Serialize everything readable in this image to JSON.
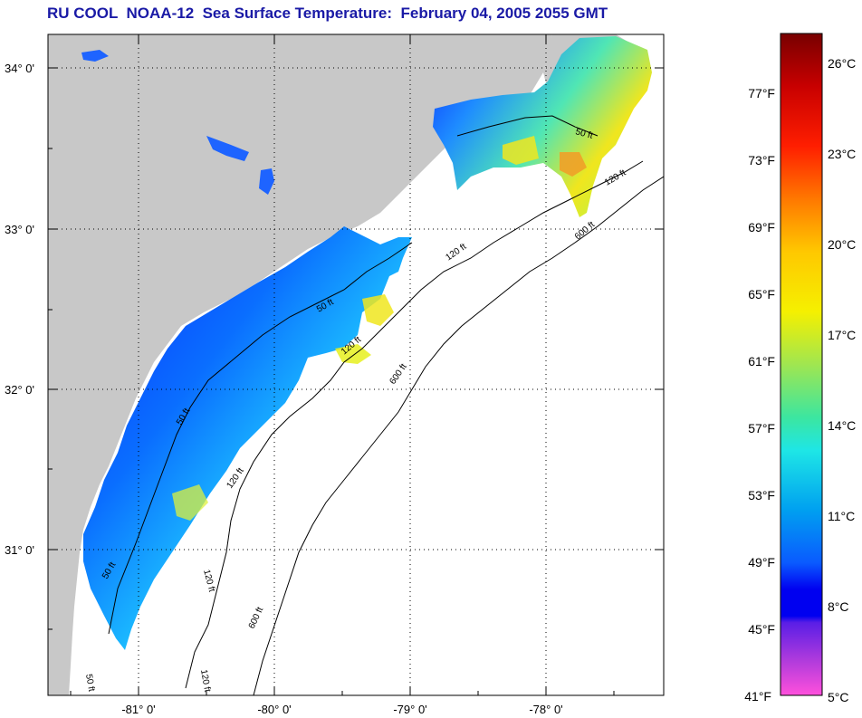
{
  "title": "RU COOL  NOAA-12  Sea Surface Temperature:  February 04, 2005 2055 GMT",
  "map": {
    "lon_ticks": [
      "-81° 0'",
      "-80° 0'",
      "-79° 0'",
      "-78° 0'"
    ],
    "lat_ticks": [
      "34° 0'",
      "33° 0'",
      "32° 0'",
      "31° 0'"
    ],
    "contour_labels": [
      "50 ft",
      "50 ft",
      "50 ft",
      "50 ft",
      "50 ft",
      "120 ft",
      "120 ft",
      "120 ft",
      "120 ft",
      "120 ft",
      "120 ft",
      "600 ft",
      "600 ft",
      "600 ft"
    ],
    "colors": {
      "land": "#c8c8c8",
      "ocean": "#ffffff",
      "grid": "#000000"
    }
  },
  "colorbar": {
    "fahrenheit_labels": [
      "77°F",
      "73°F",
      "69°F",
      "65°F",
      "61°F",
      "57°F",
      "53°F",
      "49°F",
      "45°F",
      "41°F"
    ],
    "celsius_labels": [
      "26°C",
      "23°C",
      "20°C",
      "17°C",
      "14°C",
      "11°C",
      "8°C",
      "5°C"
    ],
    "colors": [
      "#7a0000",
      "#cc0000",
      "#ff2a00",
      "#ff7a00",
      "#ffb400",
      "#ffee00",
      "#c8f03c",
      "#5ae696",
      "#1ee6dc",
      "#00b4f0",
      "#0a6eff",
      "#0000f0",
      "#7a28d2",
      "#ff50dc"
    ]
  }
}
